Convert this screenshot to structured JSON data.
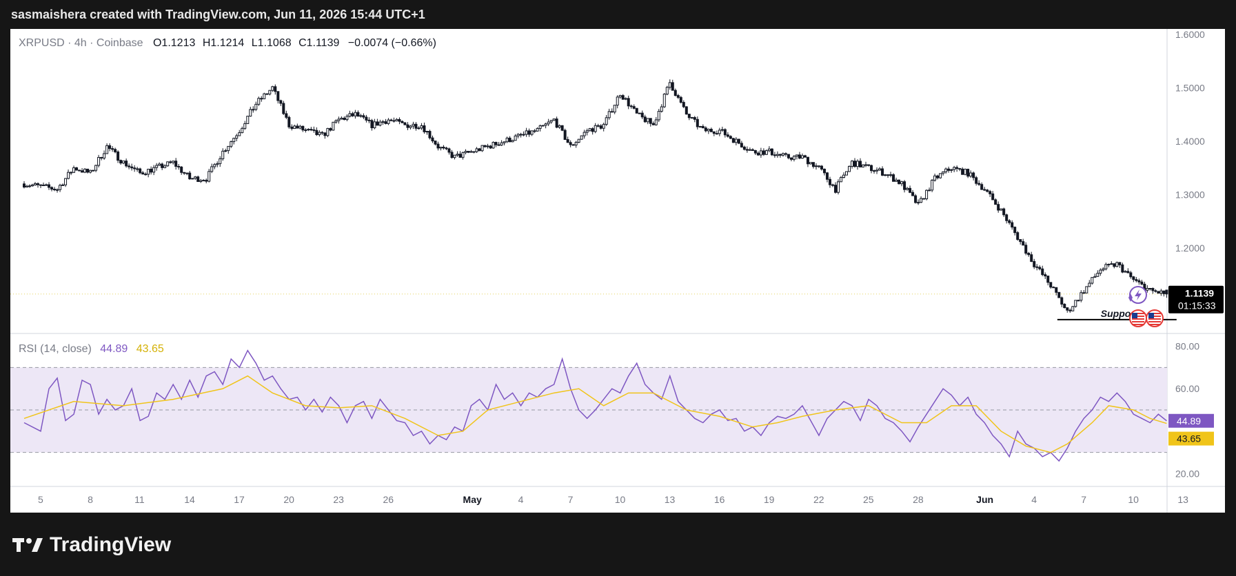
{
  "header": {
    "banner": "sasmaishera created with TradingView.com, Jun 11, 2026 15:44 UTC+1"
  },
  "legend": {
    "symbol": "XRPUSD · 4h · Coinbase",
    "o_label": "O",
    "o_value": "1.1213",
    "h_label": "H",
    "h_value": "1.1214",
    "l_label": "L",
    "l_value": "1.1068",
    "c_label": "C",
    "c_value": "1.1139",
    "change": "−0.0074 (−0.66%)"
  },
  "rsi_legend": {
    "label": "RSI (14, close)",
    "rsi_value": "44.89",
    "ma_value": "43.65"
  },
  "price_badge": {
    "price": "1.1139",
    "countdown": "01:15:33"
  },
  "rsi_badges": {
    "rsi": "44.89",
    "ma": "43.65"
  },
  "annotation": {
    "support_label": "Support"
  },
  "brand": {
    "name": "TradingView"
  },
  "colors": {
    "up": "#131722",
    "down": "#131722",
    "rsi_line": "#7e57c2",
    "rsi_ma": "#f0c419",
    "rsi_band": "#ede7f6",
    "current_price_line": "#e6d25a",
    "background": "#ffffff"
  },
  "chart_data": [
    {
      "type": "candlestick",
      "symbol": "XRPUSD",
      "timeframe": "4h",
      "exchange": "Coinbase",
      "y_axis": {
        "range": [
          1.04,
          1.61
        ],
        "ticks": [
          "1.6000",
          "1.5000",
          "1.4000",
          "1.3000",
          "1.2000",
          "1.1139"
        ],
        "tick_values": [
          1.6,
          1.5,
          1.4,
          1.3,
          1.2
        ]
      },
      "x_axis": {
        "range": [
          "Apr 4",
          "Jun 13"
        ],
        "ticks": [
          "5",
          "8",
          "11",
          "14",
          "17",
          "20",
          "23",
          "26",
          "May",
          "4",
          "7",
          "10",
          "13",
          "16",
          "19",
          "22",
          "25",
          "28",
          "Jun",
          "4",
          "7",
          "10",
          "13"
        ],
        "tick_day_index": [
          1,
          4,
          7,
          10,
          13,
          16,
          19,
          22,
          27,
          30,
          33,
          36,
          39,
          42,
          45,
          48,
          51,
          54,
          58,
          61,
          64,
          67,
          70
        ]
      },
      "close_path": [
        [
          0,
          1.32
        ],
        [
          2,
          1.31
        ],
        [
          3,
          1.35
        ],
        [
          4,
          1.34
        ],
        [
          5,
          1.39
        ],
        [
          6,
          1.36
        ],
        [
          7,
          1.34
        ],
        [
          8,
          1.35
        ],
        [
          9,
          1.36
        ],
        [
          10,
          1.33
        ],
        [
          11,
          1.33
        ],
        [
          12,
          1.38
        ],
        [
          13,
          1.42
        ],
        [
          14,
          1.47
        ],
        [
          15,
          1.5
        ],
        [
          16,
          1.43
        ],
        [
          17,
          1.42
        ],
        [
          18,
          1.41
        ],
        [
          19,
          1.44
        ],
        [
          20,
          1.45
        ],
        [
          21,
          1.43
        ],
        [
          22,
          1.44
        ],
        [
          23,
          1.43
        ],
        [
          24,
          1.43
        ],
        [
          25,
          1.39
        ],
        [
          26,
          1.37
        ],
        [
          27,
          1.38
        ],
        [
          28,
          1.39
        ],
        [
          29,
          1.4
        ],
        [
          30,
          1.41
        ],
        [
          31,
          1.42
        ],
        [
          32,
          1.44
        ],
        [
          33,
          1.39
        ],
        [
          34,
          1.42
        ],
        [
          35,
          1.43
        ],
        [
          36,
          1.49
        ],
        [
          37,
          1.45
        ],
        [
          38,
          1.43
        ],
        [
          39,
          1.51
        ],
        [
          40,
          1.45
        ],
        [
          41,
          1.42
        ],
        [
          42,
          1.42
        ],
        [
          43,
          1.4
        ],
        [
          44,
          1.38
        ],
        [
          45,
          1.38
        ],
        [
          46,
          1.37
        ],
        [
          47,
          1.37
        ],
        [
          48,
          1.35
        ],
        [
          49,
          1.31
        ],
        [
          50,
          1.36
        ],
        [
          51,
          1.35
        ],
        [
          52,
          1.34
        ],
        [
          53,
          1.32
        ],
        [
          54,
          1.28
        ],
        [
          55,
          1.33
        ],
        [
          56,
          1.35
        ],
        [
          57,
          1.34
        ],
        [
          58,
          1.31
        ],
        [
          59,
          1.27
        ],
        [
          60,
          1.22
        ],
        [
          61,
          1.17
        ],
        [
          62,
          1.13
        ],
        [
          63,
          1.08
        ],
        [
          64,
          1.12
        ],
        [
          65,
          1.16
        ],
        [
          66,
          1.17
        ],
        [
          67,
          1.14
        ],
        [
          68,
          1.12
        ],
        [
          69,
          1.1139
        ]
      ],
      "last": {
        "open": 1.1213,
        "high": 1.1214,
        "low": 1.1068,
        "close": 1.1139,
        "change": -0.0074,
        "change_pct": -0.66
      },
      "annotations": [
        {
          "type": "horizontal-line",
          "label": "Support",
          "price": 1.066,
          "from_day": 62.4,
          "to_day": 69.6
        }
      ]
    },
    {
      "type": "line",
      "name": "RSI (14, close)",
      "y_axis": {
        "range": [
          14,
          86
        ],
        "ticks": [
          "80.00",
          "60.00",
          "20.00"
        ],
        "tick_values": [
          80,
          60,
          20
        ]
      },
      "band": {
        "upper": 70,
        "middle": 50,
        "lower": 30
      },
      "series": [
        {
          "name": "RSI",
          "points": [
            [
              0,
              44
            ],
            [
              1,
              40
            ],
            [
              1.5,
              60
            ],
            [
              2,
              65
            ],
            [
              2.5,
              45
            ],
            [
              3,
              48
            ],
            [
              3.5,
              64
            ],
            [
              4,
              62
            ],
            [
              4.5,
              48
            ],
            [
              5,
              55
            ],
            [
              5.5,
              50
            ],
            [
              6,
              52
            ],
            [
              6.5,
              60
            ],
            [
              7,
              45
            ],
            [
              7.5,
              47
            ],
            [
              8,
              58
            ],
            [
              8.5,
              55
            ],
            [
              9,
              62
            ],
            [
              9.5,
              55
            ],
            [
              10,
              64
            ],
            [
              10.5,
              56
            ],
            [
              11,
              66
            ],
            [
              11.5,
              68
            ],
            [
              12,
              62
            ],
            [
              12.5,
              74
            ],
            [
              13,
              70
            ],
            [
              13.5,
              78
            ],
            [
              14,
              72
            ],
            [
              14.5,
              64
            ],
            [
              15,
              66
            ],
            [
              15.5,
              60
            ],
            [
              16,
              55
            ],
            [
              16.5,
              56
            ],
            [
              17,
              50
            ],
            [
              17.5,
              55
            ],
            [
              18,
              49
            ],
            [
              18.5,
              56
            ],
            [
              19,
              52
            ],
            [
              19.5,
              44
            ],
            [
              20,
              52
            ],
            [
              20.5,
              54
            ],
            [
              21,
              46
            ],
            [
              21.5,
              55
            ],
            [
              22,
              50
            ],
            [
              22.5,
              45
            ],
            [
              23,
              44
            ],
            [
              23.5,
              38
            ],
            [
              24,
              40
            ],
            [
              24.5,
              34
            ],
            [
              25,
              38
            ],
            [
              25.5,
              36
            ],
            [
              26,
              42
            ],
            [
              26.5,
              40
            ],
            [
              27,
              52
            ],
            [
              27.5,
              55
            ],
            [
              28,
              50
            ],
            [
              28.5,
              62
            ],
            [
              29,
              55
            ],
            [
              29.5,
              58
            ],
            [
              30,
              52
            ],
            [
              30.5,
              58
            ],
            [
              31,
              56
            ],
            [
              31.5,
              60
            ],
            [
              32,
              62
            ],
            [
              32.5,
              74
            ],
            [
              33,
              60
            ],
            [
              33.5,
              50
            ],
            [
              34,
              46
            ],
            [
              34.5,
              50
            ],
            [
              35,
              55
            ],
            [
              35.5,
              60
            ],
            [
              36,
              58
            ],
            [
              36.5,
              66
            ],
            [
              37,
              72
            ],
            [
              37.5,
              62
            ],
            [
              38,
              58
            ],
            [
              38.5,
              55
            ],
            [
              39,
              66
            ],
            [
              39.5,
              54
            ],
            [
              40,
              50
            ],
            [
              40.5,
              46
            ],
            [
              41,
              44
            ],
            [
              41.5,
              48
            ],
            [
              42,
              50
            ],
            [
              42.5,
              45
            ],
            [
              43,
              46
            ],
            [
              43.5,
              40
            ],
            [
              44,
              42
            ],
            [
              44.5,
              38
            ],
            [
              45,
              44
            ],
            [
              45.5,
              47
            ],
            [
              46,
              46
            ],
            [
              46.5,
              48
            ],
            [
              47,
              52
            ],
            [
              47.5,
              45
            ],
            [
              48,
              38
            ],
            [
              48.5,
              46
            ],
            [
              49,
              50
            ],
            [
              49.5,
              54
            ],
            [
              50,
              52
            ],
            [
              50.5,
              45
            ],
            [
              51,
              55
            ],
            [
              51.5,
              52
            ],
            [
              52,
              46
            ],
            [
              52.5,
              44
            ],
            [
              53,
              40
            ],
            [
              53.5,
              35
            ],
            [
              54,
              42
            ],
            [
              54.5,
              48
            ],
            [
              55,
              54
            ],
            [
              55.5,
              60
            ],
            [
              56,
              57
            ],
            [
              56.5,
              52
            ],
            [
              57,
              56
            ],
            [
              57.5,
              48
            ],
            [
              58,
              44
            ],
            [
              58.5,
              38
            ],
            [
              59,
              34
            ],
            [
              59.5,
              28
            ],
            [
              60,
              40
            ],
            [
              60.5,
              34
            ],
            [
              61,
              32
            ],
            [
              61.5,
              28
            ],
            [
              62,
              30
            ],
            [
              62.5,
              26
            ],
            [
              63,
              32
            ],
            [
              63.5,
              40
            ],
            [
              64,
              46
            ],
            [
              64.5,
              50
            ],
            [
              65,
              56
            ],
            [
              65.5,
              54
            ],
            [
              66,
              58
            ],
            [
              66.5,
              54
            ],
            [
              67,
              48
            ],
            [
              67.5,
              46
            ],
            [
              68,
              44
            ],
            [
              68.5,
              48
            ],
            [
              69,
              44.89
            ]
          ]
        },
        {
          "name": "RSI MA",
          "points": [
            [
              0,
              46
            ],
            [
              3,
              54
            ],
            [
              6,
              52
            ],
            [
              9,
              55
            ],
            [
              12,
              60
            ],
            [
              13.5,
              66
            ],
            [
              15,
              58
            ],
            [
              17,
              52
            ],
            [
              19,
              51
            ],
            [
              21,
              52
            ],
            [
              23,
              46
            ],
            [
              25,
              38
            ],
            [
              26.5,
              40
            ],
            [
              28,
              50
            ],
            [
              30,
              54
            ],
            [
              32,
              58
            ],
            [
              33.5,
              60
            ],
            [
              35,
              52
            ],
            [
              36.5,
              58
            ],
            [
              38,
              58
            ],
            [
              40,
              50
            ],
            [
              42,
              47
            ],
            [
              44,
              42
            ],
            [
              45.5,
              44
            ],
            [
              47,
              47
            ],
            [
              49,
              50
            ],
            [
              51,
              52
            ],
            [
              53,
              44
            ],
            [
              54.5,
              44
            ],
            [
              56,
              52
            ],
            [
              57.5,
              52
            ],
            [
              59,
              40
            ],
            [
              60.5,
              33
            ],
            [
              62,
              30
            ],
            [
              63,
              34
            ],
            [
              64.5,
              44
            ],
            [
              65.5,
              52
            ],
            [
              67,
              50
            ],
            [
              68,
              46
            ],
            [
              69,
              43.65
            ]
          ]
        }
      ]
    }
  ]
}
